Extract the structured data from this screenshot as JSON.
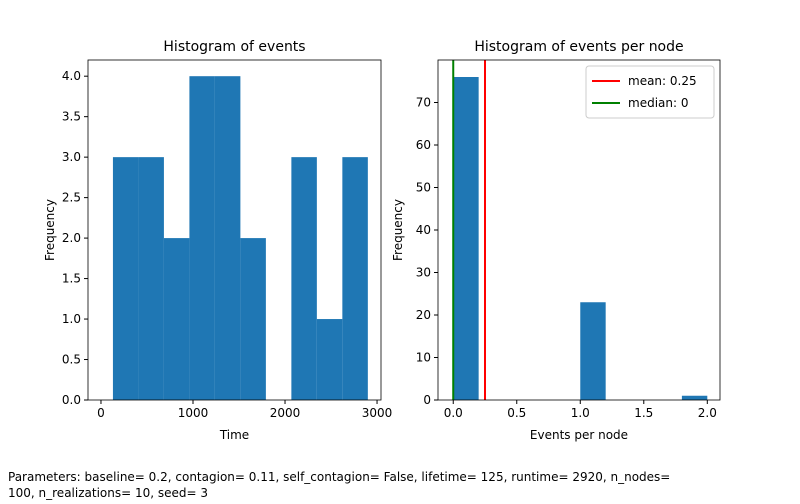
{
  "chart_data": [
    {
      "type": "histogram",
      "title": "Histogram of events",
      "xlabel": "Time",
      "ylabel": "Frequency",
      "bins": [
        130,
        407,
        684,
        961,
        1238,
        1515,
        1792,
        2069,
        2346,
        2623,
        2900
      ],
      "values": [
        3,
        3,
        2,
        4,
        4,
        2,
        0,
        3,
        1,
        3
      ],
      "color": "#1f77b4",
      "xlim": [
        -141,
        3043
      ],
      "ylim": [
        0,
        4.2
      ],
      "xticks": [
        0,
        1000,
        2000,
        3000
      ],
      "yticks": [
        {
          "value": 0,
          "label": "0.0"
        },
        0.5,
        {
          "value": 1,
          "label": "1.0"
        },
        1.5,
        {
          "value": 2,
          "label": "2.0"
        },
        2.5,
        {
          "value": 3,
          "label": "3.0"
        },
        3.5,
        {
          "value": 4,
          "label": "4.0"
        }
      ]
    },
    {
      "type": "histogram",
      "title": "Histogram of events per node",
      "xlabel": "Events per node",
      "ylabel": "Frequency",
      "bins": [
        0,
        0.2,
        0.4,
        0.6,
        0.8,
        1.0,
        1.2,
        1.4,
        1.6,
        1.8,
        2.0
      ],
      "values": [
        76,
        0,
        0,
        0,
        0,
        23,
        0,
        0,
        0,
        1
      ],
      "color": "#1f77b4",
      "xlim": [
        -0.12,
        2.1
      ],
      "ylim": [
        0,
        80
      ],
      "xticks": [
        {
          "value": 0,
          "label": "0.0"
        },
        0.5,
        {
          "value": 1,
          "label": "1.0"
        },
        1.5,
        {
          "value": 2,
          "label": "2.0"
        }
      ],
      "yticks": [
        0,
        10,
        20,
        30,
        40,
        50,
        60,
        70
      ],
      "vlines": [
        {
          "name": "mean: 0.25",
          "value": 0.25,
          "color": "#ff0000"
        },
        {
          "name": "median: 0",
          "value": 0,
          "color": "#008000"
        }
      ],
      "legend": "upper right"
    }
  ],
  "footer": [
    "Parameters: baseline= 0.2, contagion= 0.11, self_contagion= False, lifetime= 125, runtime= 2920, n_nodes=",
    "100, n_realizations= 10, seed= 3"
  ]
}
